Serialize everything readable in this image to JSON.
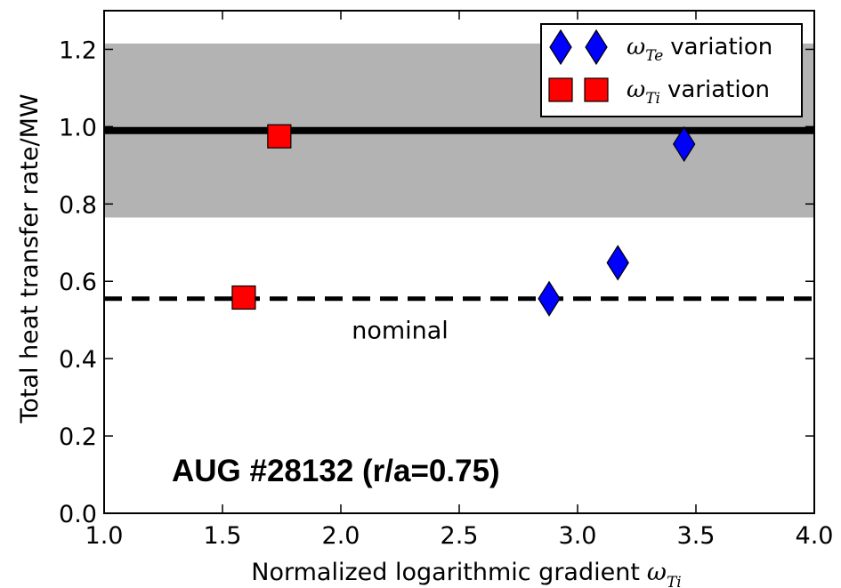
{
  "chart_data": {
    "type": "scatter",
    "title": "AUG #28132 (r/a=0.75)",
    "xlabel": "Normalized logarithmic gradient",
    "xlabel_symbol": "ω",
    "xlabel_subscript": "Ti",
    "ylabel": "Total heat transfer rate/MW",
    "xlim": [
      1.0,
      4.0
    ],
    "ylim": [
      0.0,
      1.3
    ],
    "xticks": [
      "1.0",
      "1.5",
      "2.0",
      "2.5",
      "3.0",
      "3.5",
      "4.0"
    ],
    "yticks": [
      "0.0",
      "0.2",
      "0.4",
      "0.6",
      "0.8",
      "1.0",
      "1.2"
    ],
    "grid": false,
    "legend_position": "top-right",
    "series": [
      {
        "label_symbol": "ω",
        "label_subscript": "Te",
        "label_text": "variation",
        "marker": "diamond",
        "color": "#0000ff",
        "x": [
          2.88,
          3.17,
          3.45
        ],
        "y": [
          0.555,
          0.648,
          0.955
        ]
      },
      {
        "label_symbol": "ω",
        "label_subscript": "Ti",
        "label_text": "variation",
        "marker": "square",
        "color": "#ff0000",
        "x": [
          1.59,
          1.74
        ],
        "y": [
          0.558,
          0.975
        ]
      }
    ],
    "reference_lines": {
      "experimental": {
        "y": 0.99,
        "style": "solid",
        "color": "#000000"
      },
      "band": {
        "y_low": 0.765,
        "y_high": 1.215,
        "color": "#b3b3b3"
      },
      "nominal": {
        "y": 0.555,
        "style": "dashed",
        "label": "nominal",
        "label_x": 2.25,
        "label_y": 0.475
      }
    }
  }
}
